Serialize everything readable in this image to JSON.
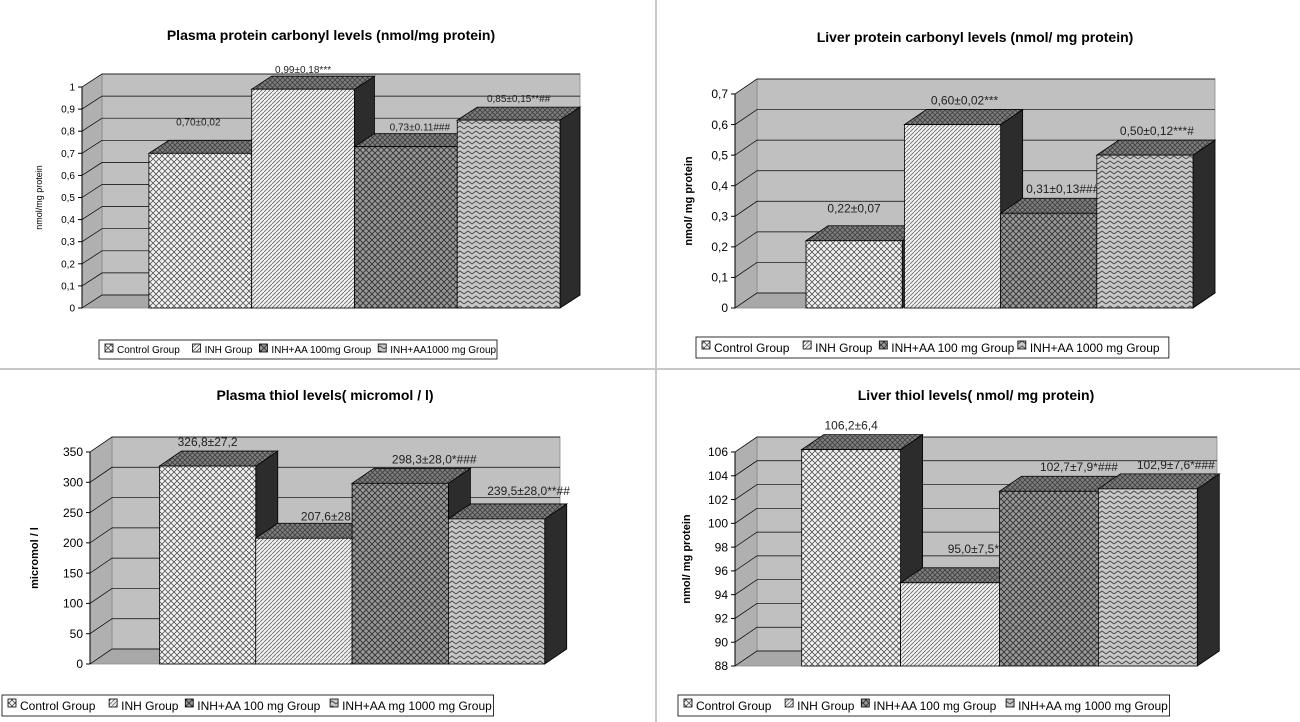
{
  "chart_data": [
    {
      "type": "bar",
      "title": "Plasma protein carbonyl levels (nmol/mg protein)",
      "ylabel": "nmol/mg protein",
      "xlabel": "",
      "ylim": [
        0,
        1
      ],
      "yticks": [
        "0",
        "0,1",
        "0,2",
        "0,3",
        "0,4",
        "0,5",
        "0,6",
        "0,7",
        "0,8",
        "0,9",
        "1"
      ],
      "categories": [
        "Control Group",
        "INH Group",
        "INH+AA 100mg Group",
        "INH+AA1000 mg Group"
      ],
      "values": [
        0.7,
        0.99,
        0.73,
        0.85
      ],
      "value_labels": [
        "0,70±0,02",
        "0,99±0,18***",
        "0,73±0.11###",
        "0,85±0,15**##"
      ],
      "legend": [
        "Control Group",
        "INH Group",
        "INH+AA  100mg Group",
        "INH+AA1000 mg Group"
      ],
      "legend_position": "bottom",
      "grid": true
    },
    {
      "type": "bar",
      "title": "Liver protein carbonyl levels (nmol/ mg protein)",
      "ylabel": "nmol/ mg protein",
      "xlabel": "",
      "ylim": [
        0,
        0.7
      ],
      "yticks": [
        "0",
        "0,1",
        "0,2",
        "0,3",
        "0,4",
        "0,5",
        "0,6",
        "0,7"
      ],
      "categories": [
        "Control Group",
        "INH Group",
        "INH+AA 100 mg Group",
        "INH+AA 1000 mg Group"
      ],
      "values": [
        0.22,
        0.6,
        0.31,
        0.5
      ],
      "value_labels": [
        "0,22±0,07",
        "0,60±0,02***",
        "0,31±0,13###",
        "0,50±0,12***#"
      ],
      "legend": [
        "Control Group",
        "INH Group",
        "INH+AA 100 mg Group",
        "INH+AA  1000 mg Group"
      ],
      "legend_position": "bottom",
      "grid": true
    },
    {
      "type": "bar",
      "title": "Plasma thiol levels( micromol / l)",
      "ylabel": "micromol / l",
      "xlabel": "",
      "ylim": [
        0,
        350
      ],
      "yticks": [
        "0",
        "50",
        "100",
        "150",
        "200",
        "250",
        "300",
        "350"
      ],
      "categories": [
        "Control Group",
        "INH Group",
        "INH+AA 100 mg Group",
        "INH+AA mg 1000 mg Group"
      ],
      "values": [
        326.8,
        207.6,
        298.3,
        239.5
      ],
      "value_labels": [
        "326,8±27,2",
        "207,6±28,1***",
        "298,3±28,0*###",
        "239,5±28,0**##"
      ],
      "legend": [
        "Control Group",
        "INH Group",
        "INH+AA  100 mg Group",
        "INH+AA mg 1000 mg Group"
      ],
      "legend_position": "bottom",
      "grid": true
    },
    {
      "type": "bar",
      "title": "Liver thiol levels( nmol/ mg protein)",
      "ylabel": "nmol/ mg protein",
      "xlabel": "",
      "ylim": [
        88,
        106
      ],
      "yticks": [
        "88",
        "90",
        "92",
        "94",
        "96",
        "98",
        "100",
        "102",
        "104",
        "106"
      ],
      "categories": [
        "Control Group",
        "INH Group",
        "INH+AA 100 mg Group",
        "INH+AA mg 1000 mg Group"
      ],
      "values": [
        106.2,
        95.0,
        102.7,
        102.9
      ],
      "value_labels": [
        "106,2±6,4",
        "95,0±7,5***",
        "102,7±7,9*###",
        "102,9±7,6*###"
      ],
      "legend": [
        "Control Group",
        "INH Group",
        "INH+AA  100 mg Group",
        "INH+AA mg 1000 mg Group"
      ],
      "legend_position": "bottom",
      "grid": true
    }
  ]
}
